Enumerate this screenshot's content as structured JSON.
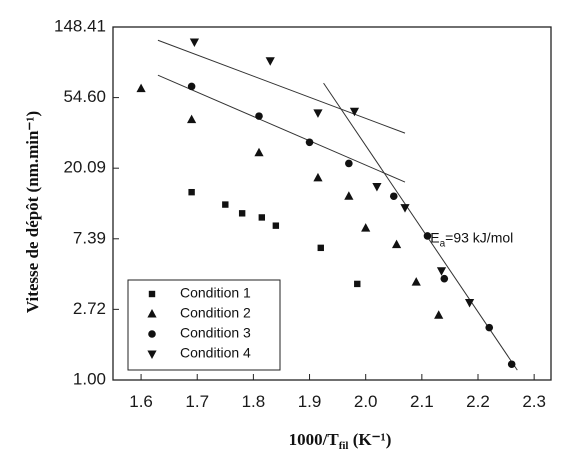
{
  "chart_data": {
    "type": "scatter",
    "title": "",
    "ylabel": "Vitesse de dépôt (nm.min⁻¹)",
    "xlabel": "1000/T",
    "xlabel_sub": "fil",
    "xlabel_unit": " (K⁻¹)",
    "y_scale": "log",
    "xlim": [
      1.55,
      2.33
    ],
    "ylim": [
      1.0,
      148.41
    ],
    "x_ticks": [
      1.6,
      1.7,
      1.8,
      1.9,
      2.0,
      2.1,
      2.2,
      2.3
    ],
    "x_tick_labels": [
      "1.6",
      "1.7",
      "1.8",
      "1.9",
      "2.0",
      "2.1",
      "2.2",
      "2.3"
    ],
    "y_ticks": [
      1.0,
      2.72,
      7.39,
      20.09,
      54.6,
      148.41
    ],
    "y_tick_labels": [
      "1.00",
      "2.72",
      "7.39",
      "20.09",
      "54.60",
      "148.41"
    ],
    "grid": false,
    "legend_position": "bottom-left",
    "series": [
      {
        "name": "Condition 1",
        "marker": "square",
        "points": [
          [
            1.69,
            14.3
          ],
          [
            1.75,
            12.0
          ],
          [
            1.78,
            10.6
          ],
          [
            1.815,
            10.0
          ],
          [
            1.84,
            8.9
          ],
          [
            1.92,
            6.5
          ],
          [
            1.985,
            3.9
          ]
        ]
      },
      {
        "name": "Condition 2",
        "marker": "triangle-up",
        "points": [
          [
            1.6,
            62
          ],
          [
            1.69,
            40
          ],
          [
            1.81,
            25
          ],
          [
            1.915,
            17.5
          ],
          [
            1.97,
            13.5
          ],
          [
            2.0,
            8.6
          ],
          [
            2.055,
            6.8
          ],
          [
            2.09,
            4.0
          ],
          [
            2.13,
            2.5
          ]
        ]
      },
      {
        "name": "Condition 3",
        "marker": "circle",
        "points": [
          [
            1.69,
            64
          ],
          [
            1.81,
            42
          ],
          [
            1.9,
            29
          ],
          [
            1.97,
            21.5
          ],
          [
            2.05,
            13.5
          ],
          [
            2.11,
            7.7
          ],
          [
            2.14,
            4.2
          ],
          [
            2.22,
            2.1
          ],
          [
            2.26,
            1.25
          ]
        ]
      },
      {
        "name": "Condition 4",
        "marker": "triangle-down",
        "points": [
          [
            1.695,
            120
          ],
          [
            1.83,
            92
          ],
          [
            1.915,
            44
          ],
          [
            1.98,
            45
          ],
          [
            2.02,
            15.5
          ],
          [
            2.07,
            11.5
          ],
          [
            2.135,
            4.7
          ],
          [
            2.185,
            3.0
          ]
        ]
      }
    ],
    "fit_lines": [
      {
        "points": [
          [
            1.63,
            123
          ],
          [
            2.07,
            33
          ]
        ]
      },
      {
        "points": [
          [
            1.63,
            75
          ],
          [
            2.07,
            16.5
          ]
        ]
      },
      {
        "points": [
          [
            1.925,
            67
          ],
          [
            2.27,
            1.15
          ]
        ]
      }
    ],
    "annotation": {
      "text_main": "E",
      "text_sub": "a",
      "text_rest": "=93 kJ/mol",
      "x": 2.115,
      "y": 7.0
    }
  }
}
